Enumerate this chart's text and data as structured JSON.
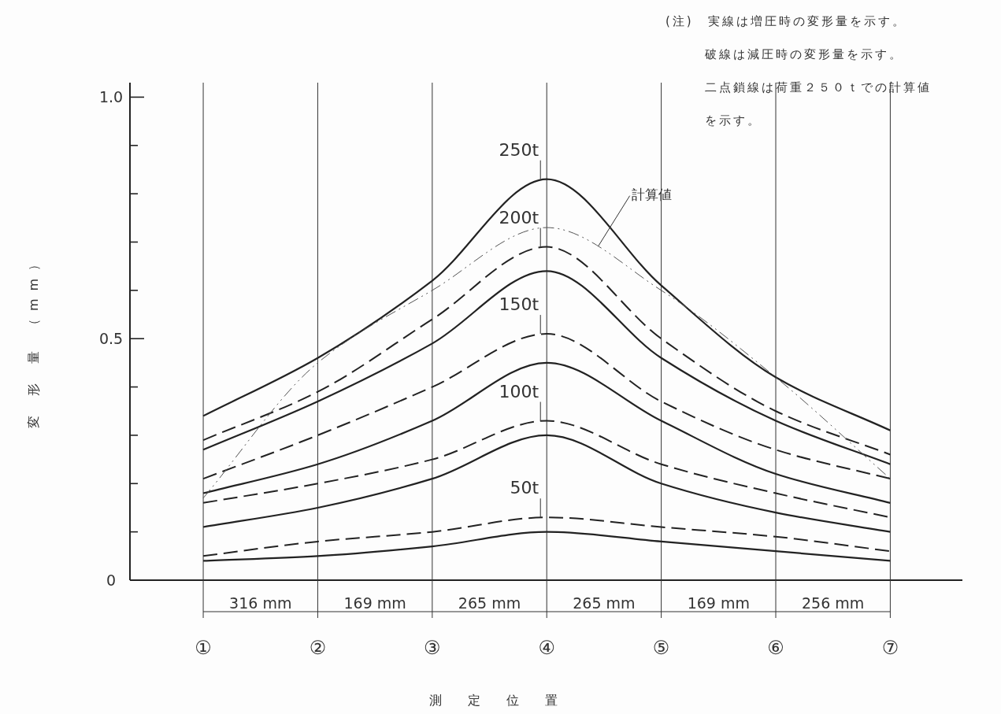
{
  "chart_data": {
    "type": "line",
    "xlabel": "測 定 位 置",
    "ylabel": "変 形 量 （mm）",
    "categories": [
      "①",
      "②",
      "③",
      "④",
      "⑤",
      "⑥",
      "⑦"
    ],
    "ylim": [
      0,
      1.03
    ],
    "yticks": [
      {
        "value": 0,
        "label": "0"
      },
      {
        "value": 0.1,
        "label": null
      },
      {
        "value": 0.2,
        "label": null
      },
      {
        "value": 0.3,
        "label": null
      },
      {
        "value": 0.4,
        "label": null
      },
      {
        "value": 0.5,
        "label": "0.5"
      },
      {
        "value": 0.6,
        "label": null
      },
      {
        "value": 0.7,
        "label": null
      },
      {
        "value": 0.8,
        "label": null
      },
      {
        "value": 0.9,
        "label": null
      },
      {
        "value": 1.0,
        "label": "1.0"
      }
    ],
    "grid": "x",
    "series": [
      {
        "color": "#222222",
        "line_style": "solid",
        "values": [
          0.34,
          0.46,
          0.62,
          0.83,
          0.61,
          0.42,
          0.31
        ]
      },
      {
        "color": "#222222",
        "line_style": "dashed",
        "values": [
          0.29,
          0.39,
          0.54,
          0.69,
          0.5,
          0.35,
          0.26
        ]
      },
      {
        "color": "#222222",
        "line_style": "solid",
        "values": [
          0.27,
          0.37,
          0.49,
          0.64,
          0.46,
          0.33,
          0.24
        ]
      },
      {
        "color": "#222222",
        "line_style": "dashed",
        "values": [
          0.21,
          0.3,
          0.4,
          0.51,
          0.37,
          0.27,
          0.21
        ]
      },
      {
        "color": "#222222",
        "line_style": "solid",
        "values": [
          0.18,
          0.24,
          0.33,
          0.45,
          0.33,
          0.22,
          0.16
        ]
      },
      {
        "color": "#222222",
        "line_style": "dashed",
        "values": [
          0.16,
          0.2,
          0.25,
          0.33,
          0.24,
          0.18,
          0.13
        ]
      },
      {
        "color": "#222222",
        "line_style": "solid",
        "values": [
          0.11,
          0.15,
          0.21,
          0.3,
          0.2,
          0.14,
          0.1
        ]
      },
      {
        "color": "#222222",
        "line_style": "dashed",
        "values": [
          0.05,
          0.08,
          0.1,
          0.13,
          0.11,
          0.09,
          0.06
        ]
      },
      {
        "color": "#222222",
        "line_style": "solid",
        "values": [
          0.04,
          0.05,
          0.07,
          0.1,
          0.08,
          0.06,
          0.04
        ]
      },
      {
        "name": "計算値",
        "color": "#555555",
        "line_style": "dotted",
        "values": [
          0.17,
          0.45,
          0.6,
          0.73,
          0.6,
          0.42,
          0.21
        ]
      }
    ],
    "annotations": [
      {
        "text": "250t",
        "x": "④",
        "y": 0.83
      },
      {
        "text": "200t",
        "x": "④",
        "y": 0.69
      },
      {
        "text": "150t",
        "x": "④",
        "y": 0.51
      },
      {
        "text": "100t",
        "x": "④",
        "y": 0.33
      },
      {
        "text": "50t",
        "x": "④",
        "y": 0.13
      },
      "316 mm",
      "169 mm",
      "265 mm",
      "265 mm",
      "169 mm",
      "256 mm",
      "(注)　実線は増圧時の変形量を示す。",
      "破線は減圧時の変形量を示す。",
      "二点鎖線は荷重２５０ｔでの計算値",
      "を示す。"
    ]
  }
}
